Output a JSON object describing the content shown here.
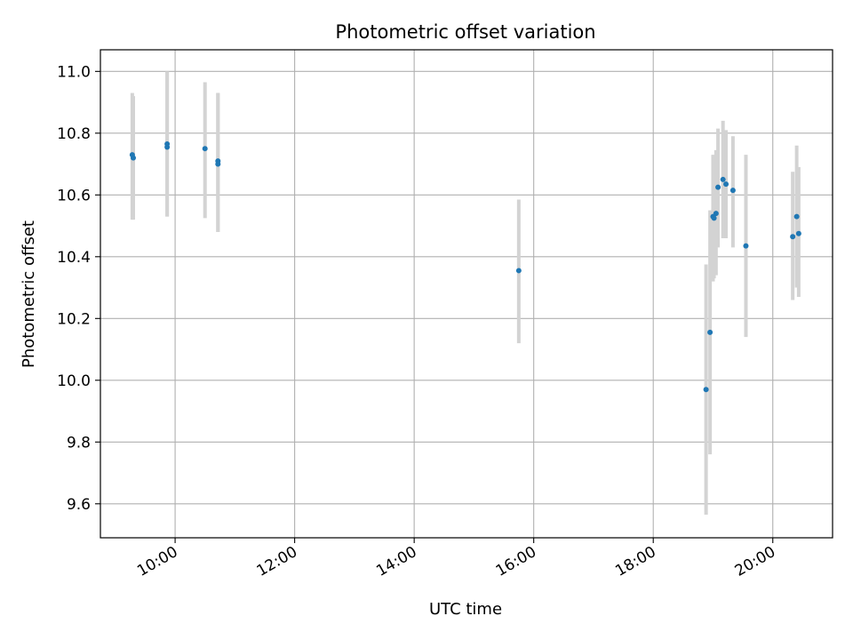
{
  "chart_data": {
    "type": "scatter",
    "title": "Photometric offset variation",
    "xlabel": "UTC time",
    "ylabel": "Photometric offset",
    "x_ticks": [
      "10:00",
      "12:00",
      "14:00",
      "16:00",
      "18:00",
      "20:00"
    ],
    "y_ticks": [
      "9.6",
      "9.8",
      "10.0",
      "10.2",
      "10.4",
      "10.6",
      "10.8",
      "11.0"
    ],
    "xlim": [
      "08:45",
      "21:00"
    ],
    "ylim": [
      9.49,
      11.07
    ],
    "grid": true,
    "point_color": "#1f77b4",
    "errorbar_color": "#d3d3d3",
    "series": [
      {
        "points": [
          {
            "x": "09:17",
            "y": 10.73,
            "yerr": [
              10.52,
              10.93
            ]
          },
          {
            "x": "09:18",
            "y": 10.72,
            "yerr": [
              10.52,
              10.92
            ]
          },
          {
            "x": "09:52",
            "y": 10.765,
            "yerr": [
              10.53,
              11.0
            ]
          },
          {
            "x": "09:52",
            "y": 10.755,
            "yerr": [
              10.53,
              11.0
            ]
          },
          {
            "x": "10:30",
            "y": 10.75,
            "yerr": [
              10.525,
              10.965
            ]
          },
          {
            "x": "10:43",
            "y": 10.71,
            "yerr": [
              10.48,
              10.93
            ]
          },
          {
            "x": "10:43",
            "y": 10.7,
            "yerr": [
              10.48,
              10.93
            ]
          },
          {
            "x": "15:45",
            "y": 10.355,
            "yerr": [
              10.12,
              10.585
            ]
          },
          {
            "x": "18:53",
            "y": 9.97,
            "yerr": [
              9.565,
              10.375
            ]
          },
          {
            "x": "18:57",
            "y": 10.155,
            "yerr": [
              9.76,
              10.55
            ]
          },
          {
            "x": "19:00",
            "y": 10.53,
            "yerr": [
              10.32,
              10.73
            ]
          },
          {
            "x": "19:01",
            "y": 10.525,
            "yerr": [
              10.33,
              10.72
            ]
          },
          {
            "x": "19:03",
            "y": 10.54,
            "yerr": [
              10.34,
              10.745
            ]
          },
          {
            "x": "19:05",
            "y": 10.625,
            "yerr": [
              10.43,
              10.815
            ]
          },
          {
            "x": "19:10",
            "y": 10.65,
            "yerr": [
              10.46,
              10.84
            ]
          },
          {
            "x": "19:13",
            "y": 10.635,
            "yerr": [
              10.46,
              10.81
            ]
          },
          {
            "x": "19:20",
            "y": 10.615,
            "yerr": [
              10.43,
              10.79
            ]
          },
          {
            "x": "19:33",
            "y": 10.435,
            "yerr": [
              10.14,
              10.73
            ]
          },
          {
            "x": "20:20",
            "y": 10.465,
            "yerr": [
              10.26,
              10.675
            ]
          },
          {
            "x": "20:24",
            "y": 10.53,
            "yerr": [
              10.3,
              10.76
            ]
          },
          {
            "x": "20:26",
            "y": 10.475,
            "yerr": [
              10.27,
              10.69
            ]
          }
        ]
      }
    ]
  }
}
